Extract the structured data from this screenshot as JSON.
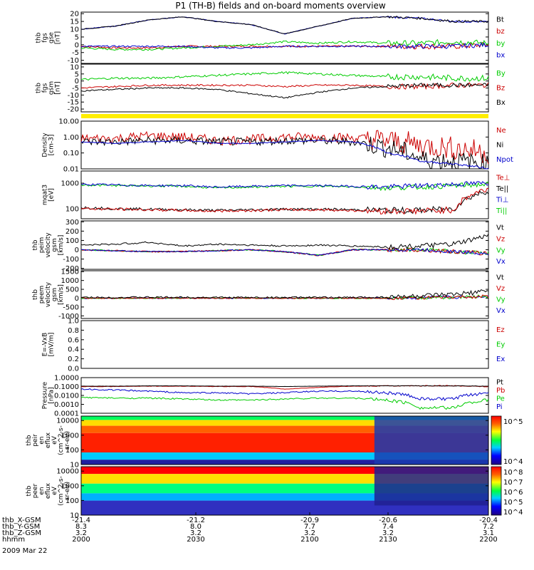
{
  "chart_data": {
    "type": "line",
    "title": "P1 (TH-B) fields and on-board moments overview",
    "date_label": "2009 Mar 22",
    "orbit_rows": [
      {
        "label": "thb_X-GSM",
        "values": [
          "-21.4",
          "-21.2",
          "-20.9",
          "-20.6",
          "-20.4"
        ]
      },
      {
        "label": "thb_Y-GSM",
        "values": [
          "8.3",
          "8.0",
          "7.7",
          "7.4",
          "7.2"
        ]
      },
      {
        "label": "thb_Z-GSM",
        "values": [
          "3.2",
          "3.2",
          "3.2",
          "3.2",
          "3.1"
        ]
      },
      {
        "label": "hhmm",
        "values": [
          "2000",
          "2030",
          "2100",
          "2130",
          "2200"
        ]
      }
    ],
    "colors": {
      "black": "#000000",
      "red": "#cc0000",
      "green": "#00cc00",
      "blue": "#0000cc",
      "yellow": "#ffee00"
    },
    "panels": [
      {
        "id": "fgs_gse",
        "ylabel": [
          "thb",
          "fgs",
          "gse",
          "[nT]"
        ],
        "scale": "linear",
        "ylim": [
          -12,
          21
        ],
        "ticks": [
          "20",
          "15",
          "10",
          "5",
          "0",
          "-5",
          "-10"
        ],
        "legend": [
          {
            "text": "Bt",
            "color": "black"
          },
          {
            "text": "bz",
            "color": "red"
          },
          {
            "text": "by",
            "color": "green"
          },
          {
            "text": "bx",
            "color": "blue"
          }
        ]
      },
      {
        "id": "fgs_gsm",
        "ylabel": [
          "thb",
          "fgs",
          "gsm",
          "[nT]"
        ],
        "scale": "linear",
        "ylim": [
          -22,
          12
        ],
        "ticks": [
          "10",
          "5",
          "0",
          "-5",
          "-10",
          "-15",
          "-20"
        ],
        "legend": [
          {
            "text": "By",
            "color": "green"
          },
          {
            "text": "Bz",
            "color": "red"
          },
          {
            "text": "Bx",
            "color": "black"
          }
        ]
      },
      {
        "id": "density",
        "ylabel": [
          "Density",
          "[cm-3]"
        ],
        "scale": "log",
        "ylim": [
          0.01,
          10
        ],
        "ticks": [
          "10.00",
          "1.00",
          "0.10",
          "0.01"
        ],
        "legend": [
          {
            "text": "Ne",
            "color": "red"
          },
          {
            "text": "Ni",
            "color": "black"
          },
          {
            "text": "Npot",
            "color": "blue"
          }
        ]
      },
      {
        "id": "temperature",
        "ylabel": [
          "mqat3",
          "[eV]"
        ],
        "scale": "log",
        "ylim": [
          40,
          3000
        ],
        "ticks": [
          "1000",
          "100"
        ],
        "legend": [
          {
            "text": "Te⊥",
            "color": "red"
          },
          {
            "text": "Te||",
            "color": "black"
          },
          {
            "text": "Ti⊥",
            "color": "blue"
          },
          {
            "text": "Ti||",
            "color": "green"
          }
        ]
      },
      {
        "id": "ion_velocity",
        "ylabel": [
          "thb",
          "peim",
          "velocity",
          "gsm",
          "[km/s]"
        ],
        "scale": "linear",
        "ylim": [
          -210,
          310
        ],
        "ticks": [
          "300",
          "200",
          "100",
          "0",
          "-100",
          "-200"
        ],
        "legend": [
          {
            "text": "Vt",
            "color": "black"
          },
          {
            "text": "Vz",
            "color": "red"
          },
          {
            "text": "Vy",
            "color": "green"
          },
          {
            "text": "Vx",
            "color": "blue"
          }
        ]
      },
      {
        "id": "electron_velocity",
        "ylabel": [
          "thb",
          "peem",
          "velocity",
          "gsm",
          "[km/s]"
        ],
        "scale": "linear",
        "ylim": [
          -1150,
          1550
        ],
        "ticks": [
          "1500",
          "1000",
          "500",
          "0",
          "-500",
          "-1000"
        ],
        "legend": [
          {
            "text": "Vt",
            "color": "black"
          },
          {
            "text": "Vz",
            "color": "red"
          },
          {
            "text": "Vy",
            "color": "green"
          },
          {
            "text": "Vx",
            "color": "blue"
          }
        ]
      },
      {
        "id": "efield",
        "ylabel": [
          "E=-VxB",
          "[mV/m]"
        ],
        "scale": "linear",
        "ylim": [
          0,
          1
        ],
        "ticks": [
          "1.0",
          "0.8",
          "0.6",
          "0.4",
          "0.2",
          "0.0"
        ],
        "legend": [
          {
            "text": "Ez",
            "color": "red"
          },
          {
            "text": "Ey",
            "color": "green"
          },
          {
            "text": "Ex",
            "color": "blue"
          }
        ]
      },
      {
        "id": "pressure",
        "ylabel": [
          "Pressure",
          "[nPa]"
        ],
        "scale": "log",
        "ylim": [
          0.0001,
          1
        ],
        "ticks": [
          "1.0000",
          "0.1000",
          "0.0100",
          "0.0010",
          "0.0001"
        ],
        "legend": [
          {
            "text": "Pt",
            "color": "black"
          },
          {
            "text": "Pb",
            "color": "red"
          },
          {
            "text": "Pe",
            "color": "green"
          },
          {
            "text": "Pi",
            "color": "blue"
          }
        ]
      },
      {
        "id": "ion_spectrogram",
        "ylabel": [
          "thb",
          "peir",
          "en",
          "eflux",
          "eV",
          "(cm^2-s-",
          "sr-eV)"
        ],
        "scale": "log",
        "ylim": [
          10,
          20000
        ],
        "ticks": [
          "10000",
          "1000",
          "100",
          "10"
        ],
        "colorbar_ticks": [
          "10^5",
          "10^4"
        ]
      },
      {
        "id": "electron_spectrogram",
        "ylabel": [
          "thb",
          "peer",
          "en",
          "eflux",
          "eV",
          "(cm^2-s-",
          "sr-eV)"
        ],
        "scale": "log",
        "ylim": [
          10,
          20000
        ],
        "ticks": [
          "10000",
          "1000",
          "100",
          "10"
        ],
        "colorbar_ticks": [
          "10^8",
          "10^7",
          "10^6",
          "10^5",
          "10^4"
        ]
      }
    ],
    "series_samples": {
      "Bt": [
        10,
        12,
        16,
        18,
        15,
        13,
        7,
        12,
        17,
        18,
        17,
        15,
        15
      ],
      "Bx_gse": [
        -1,
        -1,
        -1,
        -1,
        -2,
        -2,
        -1,
        -1,
        -1,
        -1,
        -1,
        -1,
        0
      ],
      "By_gse": [
        -2,
        -3,
        -3,
        -2,
        -1,
        0,
        2,
        1,
        2,
        1,
        1,
        2,
        1
      ],
      "Bz_gse": [
        -1,
        -2,
        -2,
        -1,
        -1,
        -1,
        -1,
        -1,
        -1,
        -1,
        -1,
        -1,
        0
      ],
      "Bx_gsm": [
        -7,
        -6,
        -5,
        -5,
        -6,
        -9,
        -12,
        -8,
        -5,
        -4,
        -3,
        -3,
        -3
      ],
      "By_gsm": [
        1,
        2,
        2,
        3,
        4,
        5,
        6,
        5,
        4,
        3,
        3,
        2,
        2
      ],
      "Bz_gsm": [
        -5,
        -4,
        -3,
        -3,
        -3,
        -3,
        -4,
        -3,
        -3,
        -4,
        -4,
        -3,
        -3
      ],
      "Ne": [
        0.8,
        0.8,
        1.2,
        1.0,
        0.6,
        0.7,
        1.0,
        1.0,
        0.9,
        0.6,
        0.3,
        0.2,
        0.1
      ],
      "Ni": [
        0.5,
        0.5,
        0.6,
        0.6,
        0.5,
        0.5,
        0.6,
        0.6,
        0.5,
        0.2,
        0.04,
        0.03,
        0.02
      ],
      "Npot": [
        0.5,
        0.4,
        0.5,
        0.6,
        0.4,
        0.4,
        0.5,
        0.6,
        0.5,
        0.1,
        0.03,
        0.02,
        0.01
      ],
      "Ti_perp": [
        900,
        850,
        800,
        800,
        700,
        750,
        800,
        800,
        750,
        700,
        800,
        900,
        1000
      ],
      "Ti_par": [
        850,
        800,
        780,
        750,
        650,
        700,
        750,
        760,
        720,
        650,
        700,
        800,
        900
      ],
      "Te_perp": [
        100,
        95,
        90,
        85,
        80,
        85,
        90,
        90,
        85,
        80,
        80,
        90,
        600
      ],
      "Te_par": [
        110,
        100,
        95,
        90,
        85,
        90,
        95,
        95,
        90,
        85,
        85,
        100,
        500
      ],
      "Vt_i": [
        50,
        60,
        80,
        40,
        60,
        50,
        40,
        50,
        40,
        30,
        40,
        60,
        150
      ],
      "Vpi": [
        0,
        -10,
        -20,
        -20,
        -10,
        0,
        -20,
        -60,
        0,
        0,
        0,
        -20,
        -40
      ],
      "Pt": [
        0.11,
        0.11,
        0.12,
        0.12,
        0.11,
        0.11,
        0.1,
        0.11,
        0.12,
        0.12,
        0.12,
        0.12,
        0.11
      ],
      "Pb": [
        0.1,
        0.1,
        0.11,
        0.11,
        0.1,
        0.1,
        0.05,
        0.08,
        0.11,
        0.12,
        0.12,
        0.12,
        0.1
      ],
      "Pi": [
        0.05,
        0.04,
        0.03,
        0.02,
        0.02,
        0.015,
        0.02,
        0.03,
        0.03,
        0.02,
        0.004,
        0.004,
        0.02
      ],
      "Pe": [
        0.006,
        0.005,
        0.005,
        0.004,
        0.003,
        0.003,
        0.004,
        0.005,
        0.005,
        0.003,
        0.0004,
        0.0004,
        0.003
      ]
    }
  }
}
